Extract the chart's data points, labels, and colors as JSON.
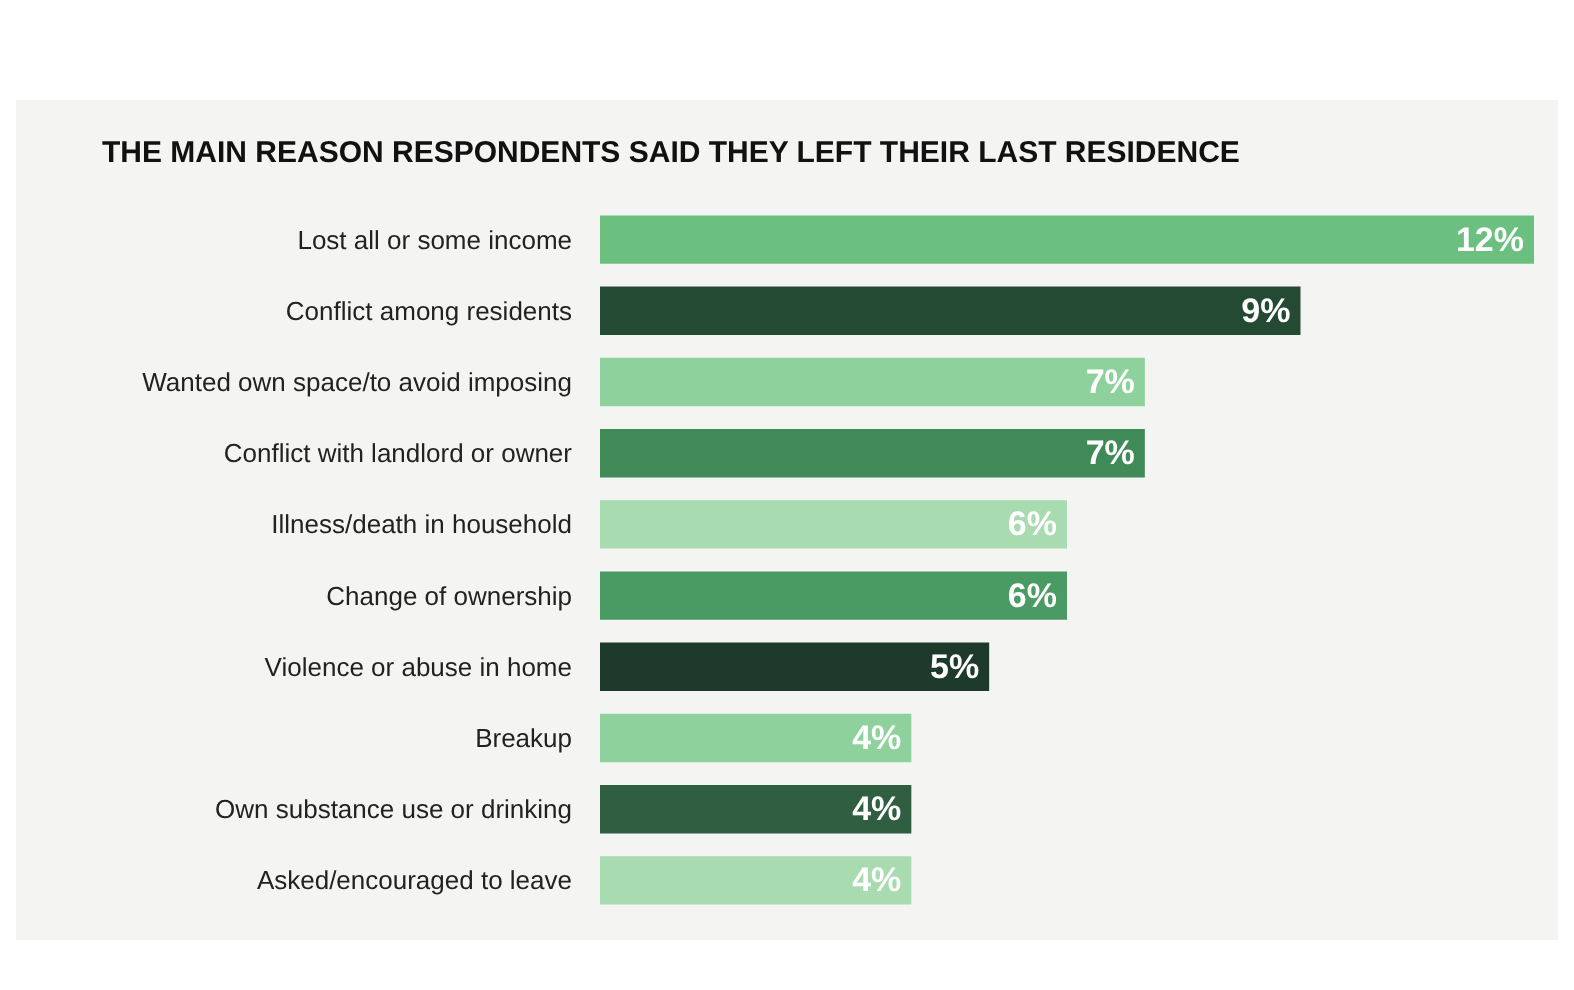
{
  "chart_data": {
    "type": "bar",
    "orientation": "horizontal",
    "title": "THE MAIN REASON RESPONDENTS SAID THEY LEFT THEIR LAST RESIDENCE",
    "categories": [
      "Lost all or some income",
      "Conflict among residents",
      "Wanted own space/to avoid imposing",
      "Conflict with landlord or owner",
      "Illness/death in household",
      "Change of ownership",
      "Violence or abuse in home",
      "Breakup",
      "Own substance use or drinking",
      "Asked/encouraged to leave"
    ],
    "values": [
      12,
      9,
      7,
      7,
      6,
      6,
      5,
      4,
      4,
      4
    ],
    "value_labels": [
      "12%",
      "9%",
      "7%",
      "7%",
      "6%",
      "6%",
      "5%",
      "4%",
      "4%",
      "4%"
    ],
    "colors": [
      "#6cc07f",
      "#254a33",
      "#8fd19c",
      "#3f8a57",
      "#a8dbb0",
      "#4a9a63",
      "#1e3a2a",
      "#8fd19c",
      "#2f5e40",
      "#a8dbb0"
    ]
  }
}
